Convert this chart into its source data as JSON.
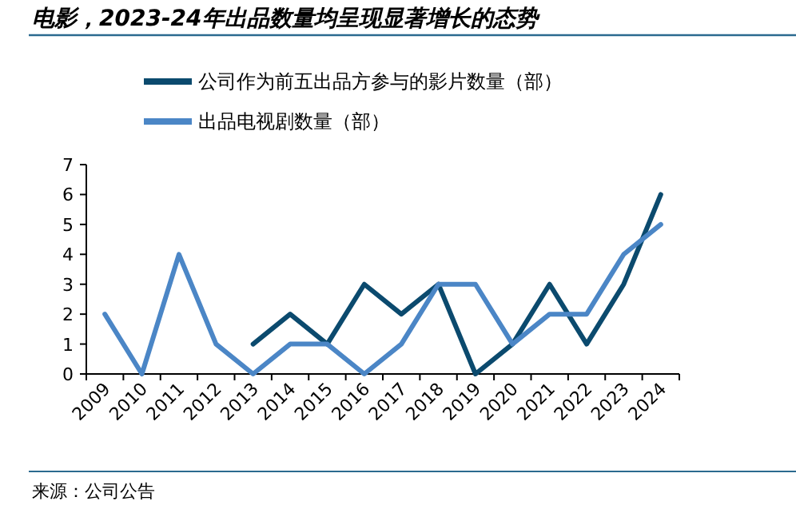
{
  "chart_data": {
    "type": "line",
    "title": "电影，2023-24年出品数量均呈现显著增长的态势",
    "categories": [
      "2009",
      "2010",
      "2011",
      "2012",
      "2013",
      "2014",
      "2015",
      "2016",
      "2017",
      "2018",
      "2019",
      "2020",
      "2021",
      "2022",
      "2023",
      "2024"
    ],
    "series": [
      {
        "name": "公司作为前五出品方参与的影片数量（部）",
        "color": "#0b4a6e",
        "values": [
          null,
          null,
          null,
          null,
          1,
          2,
          1,
          3,
          2,
          3,
          0,
          1,
          3,
          1,
          3,
          6
        ]
      },
      {
        "name": "出品电视剧数量（部）",
        "color": "#4b86c6",
        "values": [
          2,
          0,
          4,
          1,
          0,
          1,
          1,
          0,
          1,
          3,
          3,
          1,
          2,
          2,
          4,
          5
        ]
      }
    ],
    "ylim": [
      0,
      7
    ],
    "yticks": [
      0,
      1,
      2,
      3,
      4,
      5,
      6,
      7
    ],
    "grid": false,
    "legend": "top left",
    "annotations": [
      "来源：公司公告"
    ]
  }
}
